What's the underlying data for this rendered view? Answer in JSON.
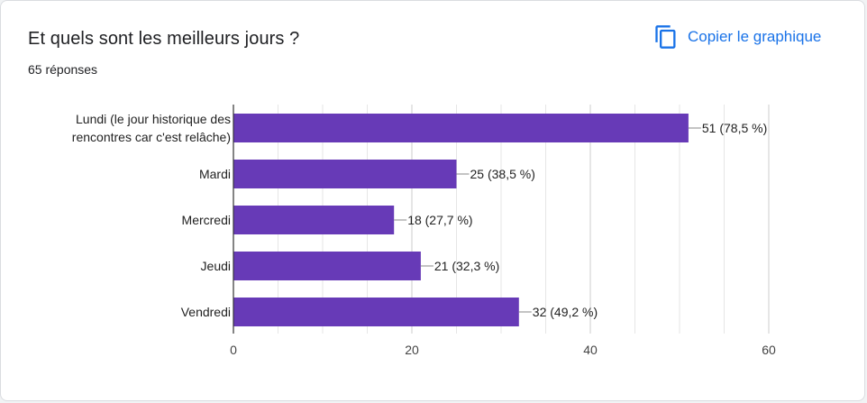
{
  "header": {
    "title": "Et quels sont les meilleurs jours ?",
    "responses": "65 réponses",
    "copy_label": "Copier le graphique"
  },
  "colors": {
    "bar": "#673ab7",
    "grid": "#e6e6e6",
    "axis": "#333333",
    "accent": "#1a73e8"
  },
  "icons": {
    "copy": "copy-icon"
  },
  "chart_data": {
    "type": "bar",
    "orientation": "horizontal",
    "categories": [
      [
        "Lundi (le jour historique des",
        "rencontres car c'est relâche)"
      ],
      [
        "Mardi"
      ],
      [
        "Mercredi"
      ],
      [
        "Jeudi"
      ],
      [
        "Vendredi"
      ]
    ],
    "values": [
      51,
      25,
      18,
      21,
      32
    ],
    "data_labels": [
      "51 (78,5 %)",
      "25 (38,5 %)",
      "18 (27,7 %)",
      "21 (32,3 %)",
      "32 (49,2 %)"
    ],
    "xlim": [
      0,
      60
    ],
    "xticks": [
      0,
      20,
      40,
      60
    ],
    "grid": true
  }
}
